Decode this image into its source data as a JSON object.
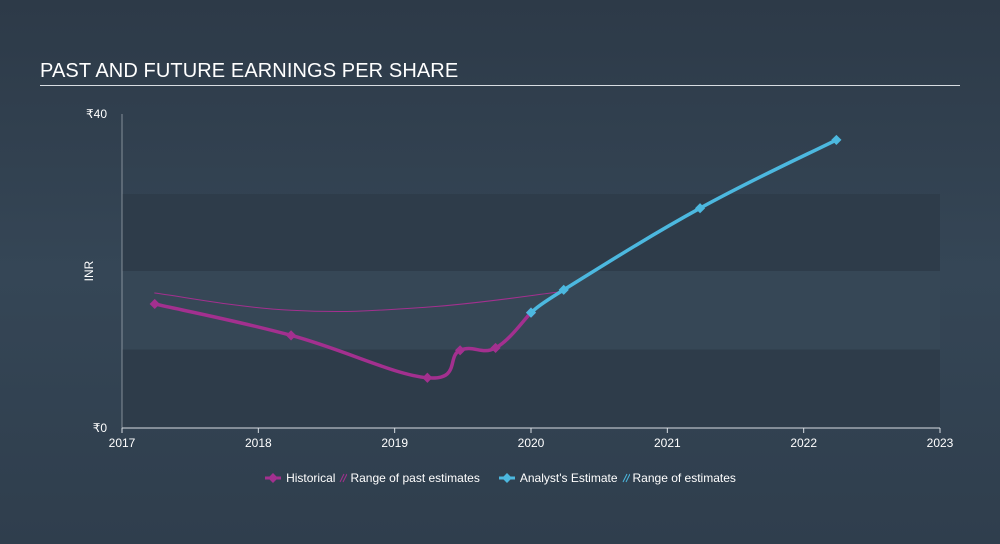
{
  "title": "PAST AND FUTURE EARNINGS PER SHARE",
  "colors": {
    "historical": "#a3308f",
    "estimate": "#4cb8df",
    "band_dark": "#2e3c4a",
    "band_light": "#364756",
    "axis": "#d8dde2"
  },
  "legend": {
    "historical": "Historical",
    "past_range": "Range of past estimates",
    "estimate": "Analyst's Estimate",
    "future_range": "Range of estimates"
  },
  "chart_data": {
    "type": "line",
    "title": "PAST AND FUTURE EARNINGS PER SHARE",
    "xlabel": "",
    "ylabel": "INR",
    "xlim": [
      2017,
      2023
    ],
    "ylim": [
      0,
      40
    ],
    "y_ticks": [
      {
        "value": 0,
        "label": "₹0"
      },
      {
        "value": 40,
        "label": "₹40"
      }
    ],
    "x_ticks": [
      {
        "value": 2017,
        "label": "2017"
      },
      {
        "value": 2018,
        "label": "2018"
      },
      {
        "value": 2019,
        "label": "2019"
      },
      {
        "value": 2020,
        "label": "2020"
      },
      {
        "value": 2021,
        "label": "2021"
      },
      {
        "value": 2022,
        "label": "2022"
      },
      {
        "value": 2023,
        "label": "2023"
      }
    ],
    "series": [
      {
        "name": "Historical",
        "points": [
          [
            2017.24,
            15.8
          ],
          [
            2018.24,
            11.8
          ],
          [
            2019.24,
            6.4
          ],
          [
            2019.48,
            9.9
          ],
          [
            2019.74,
            10.2
          ],
          [
            2020.0,
            14.7
          ]
        ]
      },
      {
        "name": "Range of past estimates",
        "points": [
          [
            2017.24,
            17.2
          ],
          [
            2018.24,
            15.0
          ],
          [
            2019.24,
            15.4
          ],
          [
            2020.24,
            17.4
          ]
        ]
      },
      {
        "name": "Analyst's Estimate",
        "points": [
          [
            2020.0,
            14.7
          ],
          [
            2020.24,
            17.6
          ],
          [
            2021.24,
            28.0
          ],
          [
            2022.24,
            36.7
          ]
        ]
      }
    ]
  }
}
